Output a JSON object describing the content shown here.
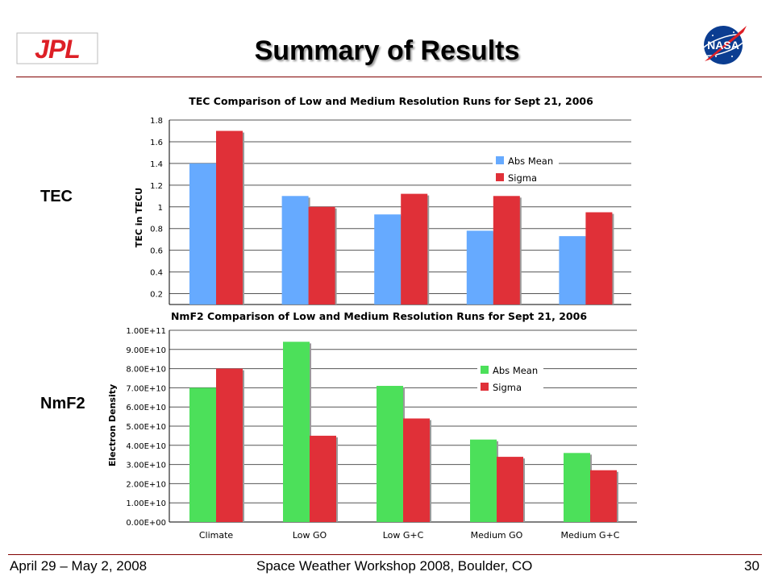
{
  "slide": {
    "title": "Summary of Results",
    "tec_label": "TEC",
    "nmf2_label": "NmF2"
  },
  "logos": {
    "left": "JPL",
    "right": "NASA"
  },
  "footer": {
    "date": "April 29 – May 2, 2008",
    "event": "Space Weather Workshop 2008, Boulder, CO",
    "page": "30"
  },
  "chart_data": [
    {
      "type": "bar",
      "title": "TEC Comparison of Low and Medium Resolution Runs for Sept 21, 2006",
      "xlabel": "",
      "ylabel": "TEC in TECU",
      "categories": [
        "Climate",
        "Low GO",
        "Low G+C",
        "Medium GO",
        "Medium G+C"
      ],
      "series": [
        {
          "name": "Abs Mean",
          "values": [
            1.4,
            1.1,
            0.93,
            0.78,
            0.73
          ],
          "color": "#66aaff"
        },
        {
          "name": "Sigma",
          "values": [
            1.7,
            1.0,
            1.12,
            1.1,
            0.95
          ],
          "color": "#e03038"
        }
      ],
      "ylim": [
        0.1,
        1.8
      ],
      "yticks": [
        "0.2",
        "0.4",
        "0.6",
        "0.8",
        "1",
        "1.2",
        "1.4",
        "1.6",
        "1.8"
      ],
      "grid": true,
      "legend": "right"
    },
    {
      "type": "bar",
      "title": "NmF2 Comparison of Low and Medium Resolution Runs for Sept 21, 2006",
      "xlabel": "",
      "ylabel": "Electron Density",
      "categories": [
        "Climate",
        "Low GO",
        "Low G+C",
        "Medium GO",
        "Medium G+C"
      ],
      "series": [
        {
          "name": "Abs Mean",
          "values": [
            70000000000.0,
            94000000000.0,
            71000000000.0,
            43000000000.0,
            36000000000.0
          ],
          "color": "#4ce05a"
        },
        {
          "name": "Sigma",
          "values": [
            80000000000.0,
            45000000000.0,
            54000000000.0,
            34000000000.0,
            27000000000.0
          ],
          "color": "#e03038"
        }
      ],
      "ylim": [
        0,
        100000000000.0
      ],
      "yticks": [
        "0.00E+00",
        "1.00E+10",
        "2.00E+10",
        "3.00E+10",
        "4.00E+10",
        "5.00E+10",
        "6.00E+10",
        "7.00E+10",
        "8.00E+10",
        "9.00E+10",
        "1.00E+11"
      ],
      "grid": true,
      "legend": "right"
    }
  ]
}
